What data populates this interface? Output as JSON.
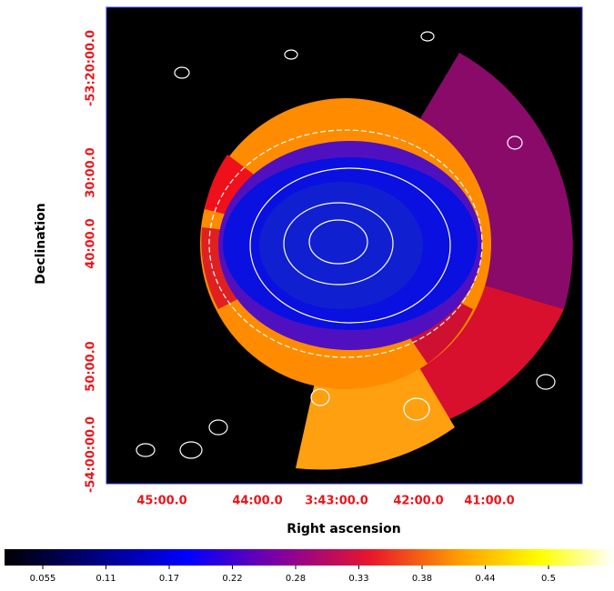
{
  "image": {
    "x_axis": {
      "label": "Right ascension",
      "ticks": [
        "45:00.0",
        "44:00.0",
        "3:43:00.0",
        "42:00.0",
        "41:00.0"
      ]
    },
    "y_axis": {
      "label": "Declination",
      "ticks": [
        "-53:20:00.0",
        "30:00.0",
        "40:00.0",
        "50:00.0",
        "-54:00:00.0"
      ]
    },
    "colorbar": {
      "ticks": [
        "0.055",
        "0.11",
        "0.17",
        "0.22",
        "0.28",
        "0.33",
        "0.38",
        "0.44",
        "0.5"
      ]
    }
  }
}
